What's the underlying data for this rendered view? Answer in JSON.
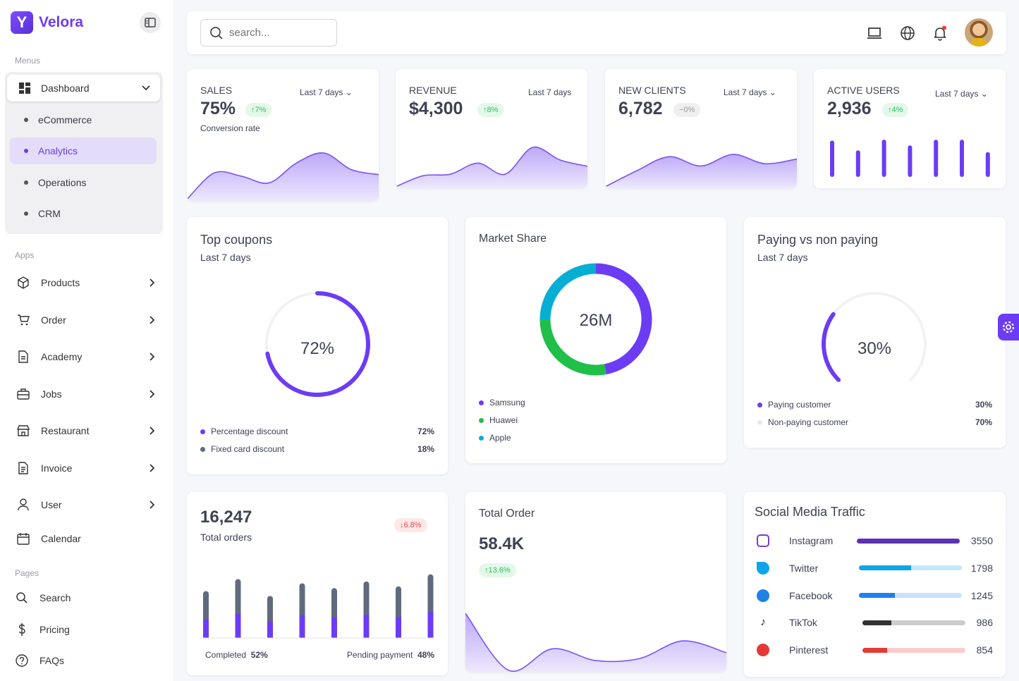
{
  "brand": {
    "name": "Velora",
    "logo_letter": "Y"
  },
  "sidebar": {
    "menus_label": "Menus",
    "dashboard": "Dashboard",
    "dashboard_items": [
      "eCommerce",
      "Analytics",
      "Operations",
      "CRM"
    ],
    "active": "Analytics",
    "apps_label": "Apps",
    "apps": [
      {
        "label": "Products",
        "icon": "box-icon"
      },
      {
        "label": "Order",
        "icon": "cart-icon"
      },
      {
        "label": "Academy",
        "icon": "document-icon"
      },
      {
        "label": "Jobs",
        "icon": "briefcase-icon"
      },
      {
        "label": "Restaurant",
        "icon": "store-icon"
      },
      {
        "label": "Invoice",
        "icon": "invoice-icon"
      },
      {
        "label": "User",
        "icon": "user-icon"
      },
      {
        "label": "Calendar",
        "icon": "calendar-icon"
      }
    ],
    "pages_label": "Pages",
    "pages": [
      {
        "label": "Search",
        "icon": "search-icon"
      },
      {
        "label": "Pricing",
        "icon": "dollar-icon"
      },
      {
        "label": "FAQs",
        "icon": "help-icon"
      }
    ]
  },
  "header": {
    "search_placeholder": "search..."
  },
  "colors": {
    "accent": "#6c3cf5",
    "green": "#22c55e",
    "red": "#ef4444",
    "cyan": "#06aed4",
    "slate": "#5f6b7d"
  },
  "stats": [
    {
      "label": "SALES",
      "range": "Last 7 days",
      "value": "75%",
      "badge": "↑7%",
      "sub": "Conversion rate",
      "spark": [
        2,
        18,
        16,
        12,
        24,
        30,
        20,
        17
      ]
    },
    {
      "label": "REVENUE",
      "range": "Last 7 days",
      "value": "$4,300",
      "badge": "↑8%",
      "spark": [
        5,
        12,
        13,
        20,
        13,
        30,
        22,
        18
      ]
    },
    {
      "label": "NEW CLIENTS",
      "range": "Last 7 days",
      "value": "6,782",
      "badge": "−0%",
      "spark": [
        0,
        14,
        26,
        18,
        28,
        20,
        24
      ]
    },
    {
      "label": "ACTIVE USERS",
      "range": "Last 7 days",
      "value": "2,936",
      "badge": "↑4%",
      "bars": [
        82,
        60,
        84,
        71,
        84,
        84,
        56
      ]
    }
  ],
  "coupons": {
    "title": "Top coupons",
    "subtitle": "Last 7 days",
    "center": "72%",
    "value": 72,
    "legend": [
      {
        "label": "Percentage discount",
        "pct": "72%",
        "color": "#6c3cf5"
      },
      {
        "label": "Fixed card discount",
        "pct": "18%",
        "color": "#5f6b7d"
      }
    ]
  },
  "market": {
    "title": "Market Share",
    "center": "26M",
    "legend": [
      {
        "label": "Samsung",
        "color": "#6c3cf5",
        "share": 47
      },
      {
        "label": "Huawei",
        "color": "#1fbf4a",
        "share": 28
      },
      {
        "label": "Apple",
        "color": "#06aed4",
        "share": 25
      }
    ]
  },
  "paying": {
    "title": "Paying vs non paying",
    "subtitle": "Last 7 days",
    "center": "30%",
    "value": 30,
    "legend": [
      {
        "label": "Paying customer",
        "pct": "30%",
        "color": "#6c3cf5"
      },
      {
        "label": "Non-paying customer",
        "pct": "70%",
        "color": "#e6e9f5"
      }
    ]
  },
  "orders": {
    "value": "16,247",
    "label": "Total orders",
    "badge": "↓6.8%",
    "completed_label": "Completed",
    "completed_pct": "52%",
    "pending_label": "Pending payment",
    "pending_pct": "48%",
    "completed": [
      40,
      52,
      36,
      49,
      44,
      50,
      45,
      56
    ],
    "pending": [
      38,
      46,
      34,
      42,
      39,
      44,
      41,
      50
    ]
  },
  "total_order": {
    "title": "Total Order",
    "value": "58.4K",
    "badge": "↑13.6%",
    "spark": [
      30,
      1,
      12,
      6,
      7,
      16,
      10
    ]
  },
  "social": {
    "title": "Social Media Traffic",
    "items": [
      {
        "name": "Instagram",
        "value": "3550",
        "fill": 100,
        "color": "#5b32b0",
        "track": "#5b32b0",
        "icon": "instagram-icon"
      },
      {
        "name": "Twitter",
        "value": "1798",
        "fill": 51,
        "color": "#0ea5e9",
        "track": "#c5e8fb",
        "icon": "twitter-icon"
      },
      {
        "name": "Facebook",
        "value": "1245",
        "fill": 35,
        "color": "#1f80e8",
        "track": "#c9e2fb",
        "icon": "facebook-icon"
      },
      {
        "name": "TikTok",
        "value": "986",
        "fill": 28,
        "color": "#333333",
        "track": "#cccccc",
        "icon": "tiktok-icon"
      },
      {
        "name": "Pinterest",
        "value": "854",
        "fill": 24,
        "color": "#e53935",
        "track": "#fbcccc",
        "icon": "pinterest-icon"
      }
    ]
  }
}
